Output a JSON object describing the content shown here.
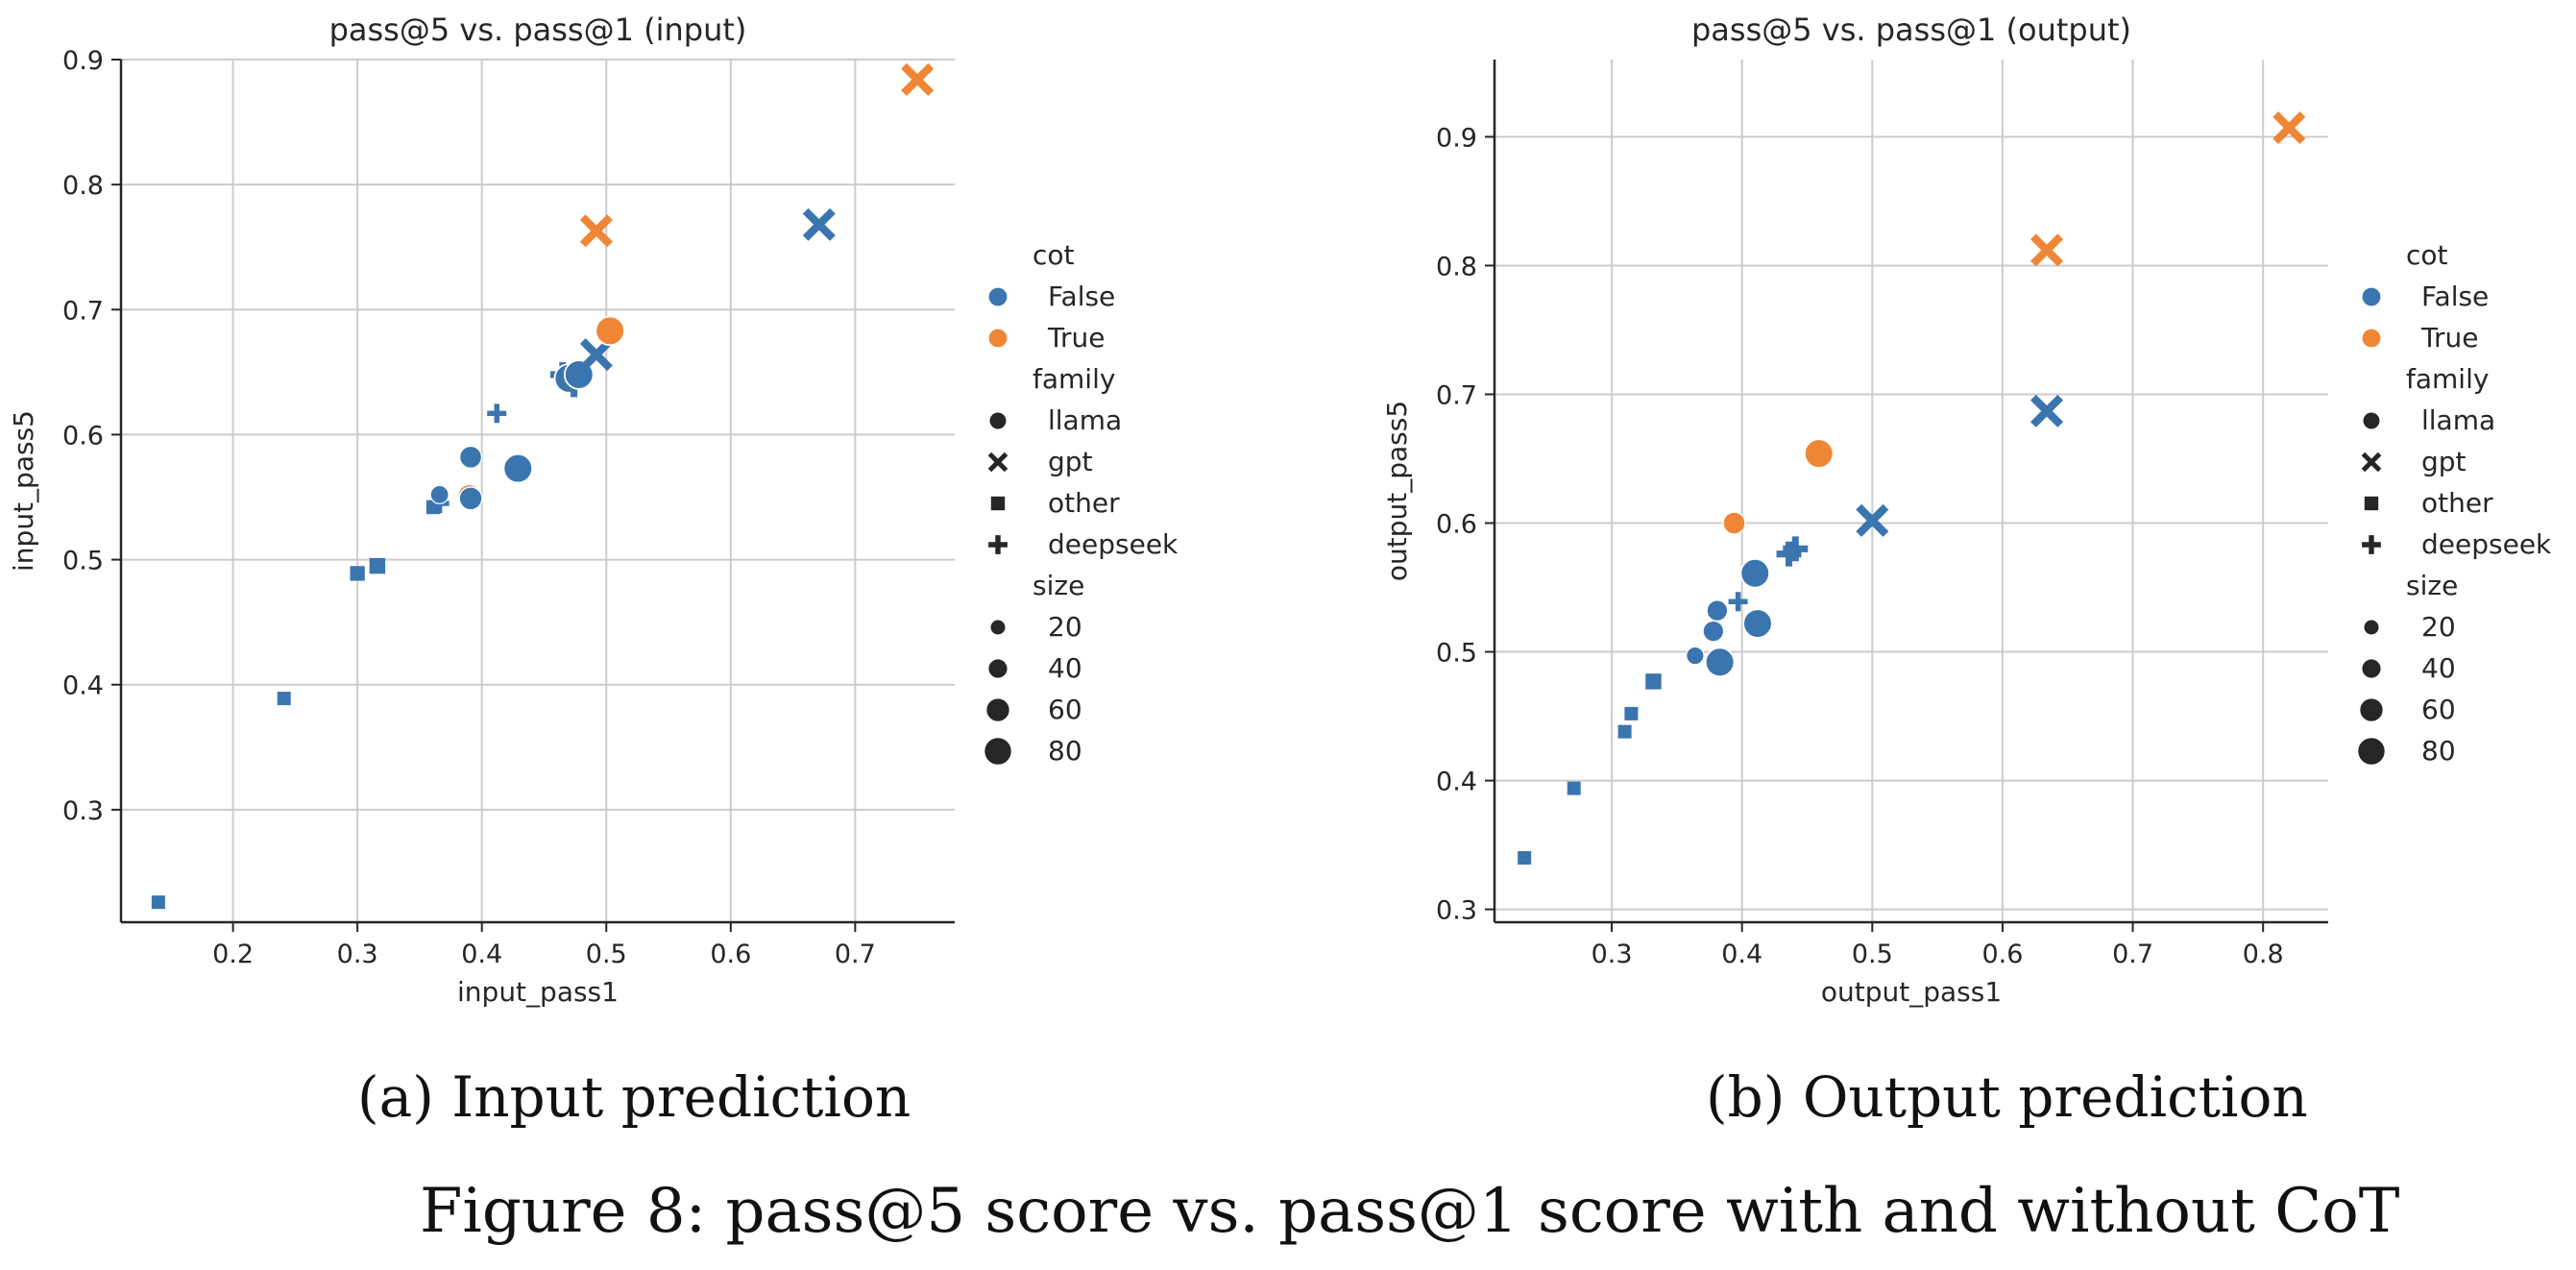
{
  "figure": {
    "caption": "Figure 8: pass@5 score vs. pass@1 score with and without CoT",
    "subcaptions": [
      "(a) Input prediction",
      "(b) Output prediction"
    ]
  },
  "legend": {
    "hue_title": "cot",
    "hue_entries": [
      {
        "label": "False",
        "color": "#3a75af"
      },
      {
        "label": "True",
        "color": "#ef8636"
      }
    ],
    "style_title": "family",
    "style_entries": [
      {
        "label": "llama",
        "marker": "circle"
      },
      {
        "label": "gpt",
        "marker": "x"
      },
      {
        "label": "other",
        "marker": "square"
      },
      {
        "label": "deepseek",
        "marker": "plus"
      }
    ],
    "size_title": "size",
    "size_entries": [
      "20",
      "40",
      "60",
      "80"
    ]
  },
  "chart_data": [
    {
      "type": "scatter",
      "title": "pass@5 vs. pass@1 (input)",
      "xlabel": "input_pass1",
      "ylabel": "input_pass5",
      "xlim": [
        0.11,
        0.78
      ],
      "ylim": [
        0.21,
        0.9
      ],
      "xticks": [
        "0.2",
        "0.3",
        "0.4",
        "0.5",
        "0.6",
        "0.7"
      ],
      "yticks": [
        "0.3",
        "0.4",
        "0.5",
        "0.6",
        "0.7",
        "0.8",
        "0.9"
      ],
      "grid": true,
      "legend_position": "right",
      "points": [
        {
          "x": 0.14,
          "y": 0.226,
          "cot": "False",
          "family": "other",
          "size": 10
        },
        {
          "x": 0.241,
          "y": 0.389,
          "cot": "False",
          "family": "other",
          "size": 10
        },
        {
          "x": 0.3,
          "y": 0.489,
          "cot": "False",
          "family": "other",
          "size": 15
        },
        {
          "x": 0.316,
          "y": 0.495,
          "cot": "False",
          "family": "other",
          "size": 20
        },
        {
          "x": 0.361,
          "y": 0.542,
          "cot": "False",
          "family": "other",
          "size": 12
        },
        {
          "x": 0.366,
          "y": 0.545,
          "cot": "False",
          "family": "deepseek",
          "size": 12
        },
        {
          "x": 0.366,
          "y": 0.552,
          "cot": "False",
          "family": "llama",
          "size": 14
        },
        {
          "x": 0.39,
          "y": 0.551,
          "cot": "True",
          "family": "llama",
          "size": 34
        },
        {
          "x": 0.391,
          "y": 0.549,
          "cot": "False",
          "family": "llama",
          "size": 34
        },
        {
          "x": 0.391,
          "y": 0.582,
          "cot": "False",
          "family": "llama",
          "size": 30
        },
        {
          "x": 0.412,
          "y": 0.617,
          "cot": "False",
          "family": "deepseek",
          "size": 12
        },
        {
          "x": 0.429,
          "y": 0.573,
          "cot": "False",
          "family": "llama",
          "size": 70
        },
        {
          "x": 0.465,
          "y": 0.648,
          "cot": "False",
          "family": "deepseek",
          "size": 33
        },
        {
          "x": 0.47,
          "y": 0.645,
          "cot": "False",
          "family": "llama",
          "size": 70
        },
        {
          "x": 0.474,
          "y": 0.64,
          "cot": "False",
          "family": "deepseek",
          "size": 33
        },
        {
          "x": 0.478,
          "y": 0.648,
          "cot": "False",
          "family": "llama",
          "size": 70
        },
        {
          "x": 0.492,
          "y": 0.664,
          "cot": "False",
          "family": "gpt",
          "size": 70
        },
        {
          "x": 0.492,
          "y": 0.763,
          "cot": "True",
          "family": "gpt",
          "size": 70
        },
        {
          "x": 0.503,
          "y": 0.683,
          "cot": "True",
          "family": "llama",
          "size": 70
        },
        {
          "x": 0.671,
          "y": 0.768,
          "cot": "False",
          "family": "gpt",
          "size": 70
        },
        {
          "x": 0.75,
          "y": 0.884,
          "cot": "True",
          "family": "gpt",
          "size": 70
        }
      ]
    },
    {
      "type": "scatter",
      "title": "pass@5 vs. pass@1 (output)",
      "xlabel": "output_pass1",
      "ylabel": "output_pass5",
      "xlim": [
        0.21,
        0.85
      ],
      "ylim": [
        0.29,
        0.96
      ],
      "xticks": [
        "0.3",
        "0.4",
        "0.5",
        "0.6",
        "0.7",
        "0.8"
      ],
      "yticks": [
        "0.3",
        "0.4",
        "0.5",
        "0.6",
        "0.7",
        "0.8",
        "0.9"
      ],
      "grid": true,
      "legend_position": "right",
      "points": [
        {
          "x": 0.233,
          "y": 0.34,
          "cot": "False",
          "family": "other",
          "size": 10
        },
        {
          "x": 0.271,
          "y": 0.394,
          "cot": "False",
          "family": "other",
          "size": 10
        },
        {
          "x": 0.31,
          "y": 0.438,
          "cot": "False",
          "family": "other",
          "size": 10
        },
        {
          "x": 0.315,
          "y": 0.452,
          "cot": "False",
          "family": "other",
          "size": 10
        },
        {
          "x": 0.332,
          "y": 0.477,
          "cot": "False",
          "family": "other",
          "size": 20
        },
        {
          "x": 0.364,
          "y": 0.497,
          "cot": "False",
          "family": "llama",
          "size": 12
        },
        {
          "x": 0.378,
          "y": 0.516,
          "cot": "False",
          "family": "llama",
          "size": 24
        },
        {
          "x": 0.381,
          "y": 0.532,
          "cot": "False",
          "family": "llama",
          "size": 24
        },
        {
          "x": 0.383,
          "y": 0.492,
          "cot": "False",
          "family": "llama",
          "size": 70
        },
        {
          "x": 0.394,
          "y": 0.6,
          "cot": "True",
          "family": "llama",
          "size": 30
        },
        {
          "x": 0.397,
          "y": 0.539,
          "cot": "False",
          "family": "deepseek",
          "size": 12
        },
        {
          "x": 0.41,
          "y": 0.561,
          "cot": "False",
          "family": "llama",
          "size": 70
        },
        {
          "x": 0.41,
          "y": 0.522,
          "cot": "False",
          "family": "deepseek",
          "size": 30
        },
        {
          "x": 0.412,
          "y": 0.522,
          "cot": "False",
          "family": "llama",
          "size": 70
        },
        {
          "x": 0.436,
          "y": 0.576,
          "cot": "False",
          "family": "deepseek",
          "size": 33
        },
        {
          "x": 0.441,
          "y": 0.58,
          "cot": "False",
          "family": "deepseek",
          "size": 33
        },
        {
          "x": 0.459,
          "y": 0.654,
          "cot": "True",
          "family": "llama",
          "size": 70
        },
        {
          "x": 0.5,
          "y": 0.602,
          "cot": "False",
          "family": "gpt",
          "size": 70
        },
        {
          "x": 0.634,
          "y": 0.687,
          "cot": "False",
          "family": "gpt",
          "size": 70
        },
        {
          "x": 0.634,
          "y": 0.812,
          "cot": "True",
          "family": "gpt",
          "size": 70
        },
        {
          "x": 0.82,
          "y": 0.907,
          "cot": "True",
          "family": "gpt",
          "size": 70
        }
      ]
    }
  ]
}
